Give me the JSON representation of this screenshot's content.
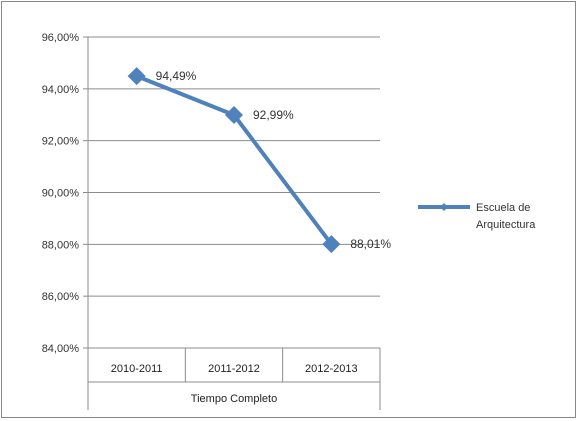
{
  "chart_data": {
    "type": "line",
    "group_label": "Tiempo Completo",
    "categories": [
      "2010-2011",
      "2011-2012",
      "2012-2013"
    ],
    "series": [
      {
        "name": "Escuela de Arquitectura",
        "name_lines": [
          "Escuela de",
          "Arquitectura"
        ],
        "values": [
          94.49,
          92.99,
          88.01
        ],
        "data_labels": [
          "94,49%",
          "92,99%",
          "88,01%"
        ],
        "color": "#4F81BD"
      }
    ],
    "ylim": [
      84,
      96
    ],
    "yticks": [
      84,
      86,
      88,
      90,
      92,
      94,
      96
    ],
    "ytick_labels": [
      "84,00%",
      "86,00%",
      "88,00%",
      "90,00%",
      "92,00%",
      "94,00%",
      "96,00%"
    ],
    "grid": true,
    "legend": "right"
  }
}
